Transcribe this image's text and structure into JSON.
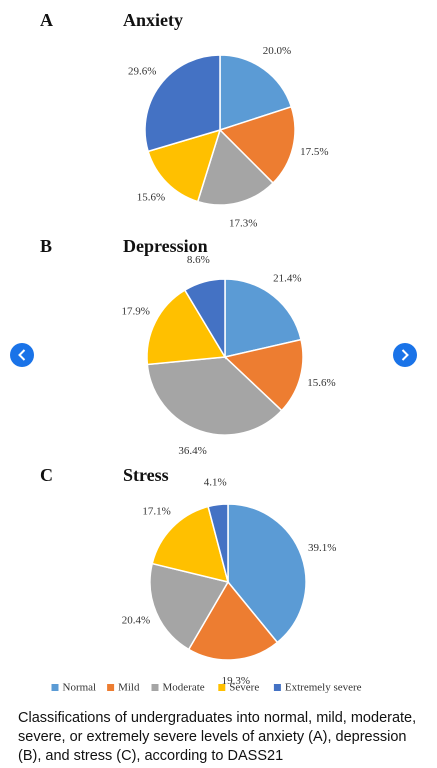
{
  "chart_data": [
    {
      "type": "pie",
      "panel": "A",
      "title": "Anxiety",
      "categories": [
        "Normal",
        "Mild",
        "Moderate",
        "Severe",
        "Extremely severe"
      ],
      "colors": [
        "#5b9bd5",
        "#ed7d31",
        "#a5a5a5",
        "#ffc000",
        "#4472c4"
      ],
      "values": [
        20.0,
        17.5,
        17.3,
        15.6,
        29.6
      ],
      "value_labels": [
        "20.0%",
        "17.5%",
        "17.3%",
        "15.6%",
        "29.6%"
      ]
    },
    {
      "type": "pie",
      "panel": "B",
      "title": "Depression",
      "categories": [
        "Normal",
        "Mild",
        "Moderate",
        "Severe",
        "Extremely severe"
      ],
      "colors": [
        "#5b9bd5",
        "#ed7d31",
        "#a5a5a5",
        "#ffc000",
        "#4472c4"
      ],
      "values": [
        21.4,
        15.6,
        36.4,
        17.9,
        8.6
      ],
      "value_labels": [
        "21.4%",
        "15.6%",
        "36.4%",
        "17.9%",
        "8.6%"
      ]
    },
    {
      "type": "pie",
      "panel": "C",
      "title": "Stress",
      "categories": [
        "Normal",
        "Mild",
        "Moderate",
        "Severe",
        "Extremely severe"
      ],
      "colors": [
        "#5b9bd5",
        "#ed7d31",
        "#a5a5a5",
        "#ffc000",
        "#4472c4"
      ],
      "values": [
        39.1,
        19.3,
        20.4,
        17.1,
        4.1
      ],
      "value_labels": [
        "39.1%",
        "19.3%",
        "20.4%",
        "17.1%",
        "4.1%"
      ]
    }
  ],
  "caption": "Classifications of undergraduates into normal, mild, moderate, severe, or extremely severe levels of anxiety (A), depression (B), and stress (C), according to DASS21"
}
